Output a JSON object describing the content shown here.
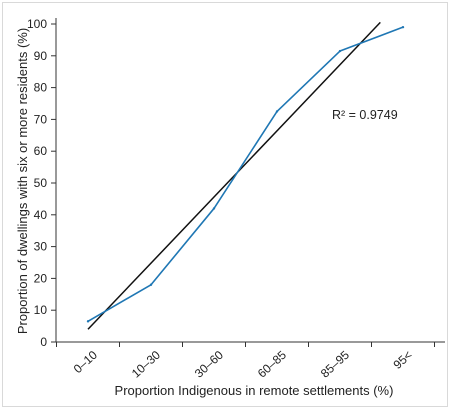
{
  "chart_data": {
    "type": "line",
    "title": "",
    "xlabel": "Proportion Indigenous in remote settlements (%)",
    "ylabel": "Proportion of dwellings with six or more residents (%)",
    "categories": [
      "0–10",
      "10–30",
      "30–60",
      "60–85",
      "85–95",
      "95<"
    ],
    "ylim": [
      0,
      100
    ],
    "yticks": [
      0,
      10,
      20,
      30,
      40,
      50,
      60,
      70,
      80,
      90,
      100
    ],
    "grid": false,
    "series": [
      {
        "values": [
          6.5,
          18,
          42,
          72.5,
          91.5,
          99
        ],
        "color": "#1f77b4"
      }
    ],
    "trendline": {
      "type": "linear",
      "start": {
        "x": "0–10",
        "y": 4
      },
      "end": {
        "x": "85–95",
        "y": 100.5,
        "x_offset_categories": 0.64
      },
      "color": "#111111",
      "label": "R² = 0.9749"
    }
  }
}
